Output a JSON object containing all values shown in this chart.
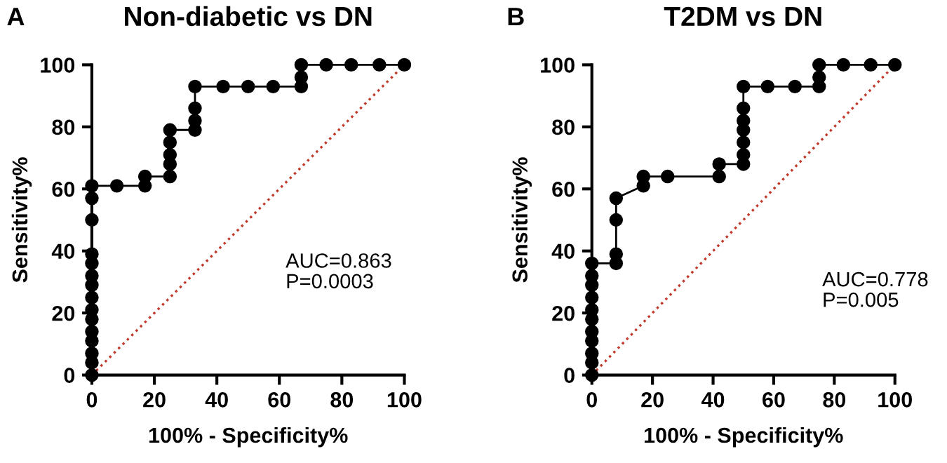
{
  "chart_data": [
    {
      "type": "line",
      "title": "Non-diabetic vs DN",
      "xlabel": "100% - Specificity%",
      "ylabel": "Sensitivity%",
      "xlim": [
        0,
        100
      ],
      "ylim": [
        0,
        100
      ],
      "xticks": [
        0,
        20,
        40,
        60,
        80,
        100
      ],
      "yticks": [
        0,
        20,
        40,
        60,
        80,
        100
      ],
      "grid": false,
      "annotations": [
        "A",
        "AUC=0.863\nP=0.0003"
      ],
      "series": [
        {
          "color": "#000000",
          "marker": "circle",
          "line_style": "solid",
          "x": [
            0,
            0,
            0,
            0,
            0,
            0,
            0,
            0,
            0,
            0,
            0,
            0,
            0,
            0,
            0,
            8,
            17,
            17,
            25,
            25,
            25,
            25,
            25,
            33,
            33,
            33,
            33,
            42,
            50,
            58,
            67,
            67,
            67,
            75,
            83,
            92,
            100
          ],
          "values": [
            0,
            4,
            7,
            11,
            14,
            18,
            21,
            25,
            29,
            32,
            36,
            39,
            50,
            57,
            61,
            61,
            61,
            64,
            64,
            68,
            71,
            75,
            79,
            79,
            82,
            86,
            93,
            93,
            93,
            93,
            93,
            96,
            100,
            100,
            100,
            100,
            100
          ]
        },
        {
          "type": "line",
          "color": "#c0392b",
          "marker": "none",
          "line_style": "dotted",
          "x": [
            0,
            100
          ],
          "values": [
            0,
            100
          ]
        }
      ]
    },
    {
      "type": "line",
      "title": "T2DM vs DN",
      "xlabel": "100% - Specificity%",
      "ylabel": "Sensitivity%",
      "xlim": [
        0,
        100
      ],
      "ylim": [
        0,
        100
      ],
      "xticks": [
        0,
        20,
        40,
        60,
        80,
        100
      ],
      "yticks": [
        0,
        20,
        40,
        60,
        80,
        100
      ],
      "grid": false,
      "annotations": [
        "B",
        "AUC=0.778\nP=0.005"
      ],
      "series": [
        {
          "color": "#000000",
          "marker": "circle",
          "line_style": "solid",
          "x": [
            0,
            0,
            0,
            0,
            0,
            0,
            0,
            0,
            0,
            0,
            0,
            8,
            8,
            8,
            8,
            17,
            17,
            25,
            42,
            42,
            50,
            50,
            50,
            50,
            50,
            50,
            50,
            58,
            67,
            75,
            75,
            75,
            83,
            92,
            100
          ],
          "values": [
            0,
            4,
            7,
            11,
            14,
            18,
            21,
            25,
            29,
            32,
            36,
            36,
            39,
            50,
            57,
            61,
            64,
            64,
            64,
            68,
            68,
            71,
            75,
            79,
            82,
            86,
            93,
            93,
            93,
            93,
            96,
            100,
            100,
            100,
            100
          ]
        },
        {
          "type": "line",
          "color": "#c0392b",
          "marker": "none",
          "line_style": "dotted",
          "x": [
            0,
            100
          ],
          "values": [
            0,
            100
          ]
        }
      ]
    }
  ]
}
